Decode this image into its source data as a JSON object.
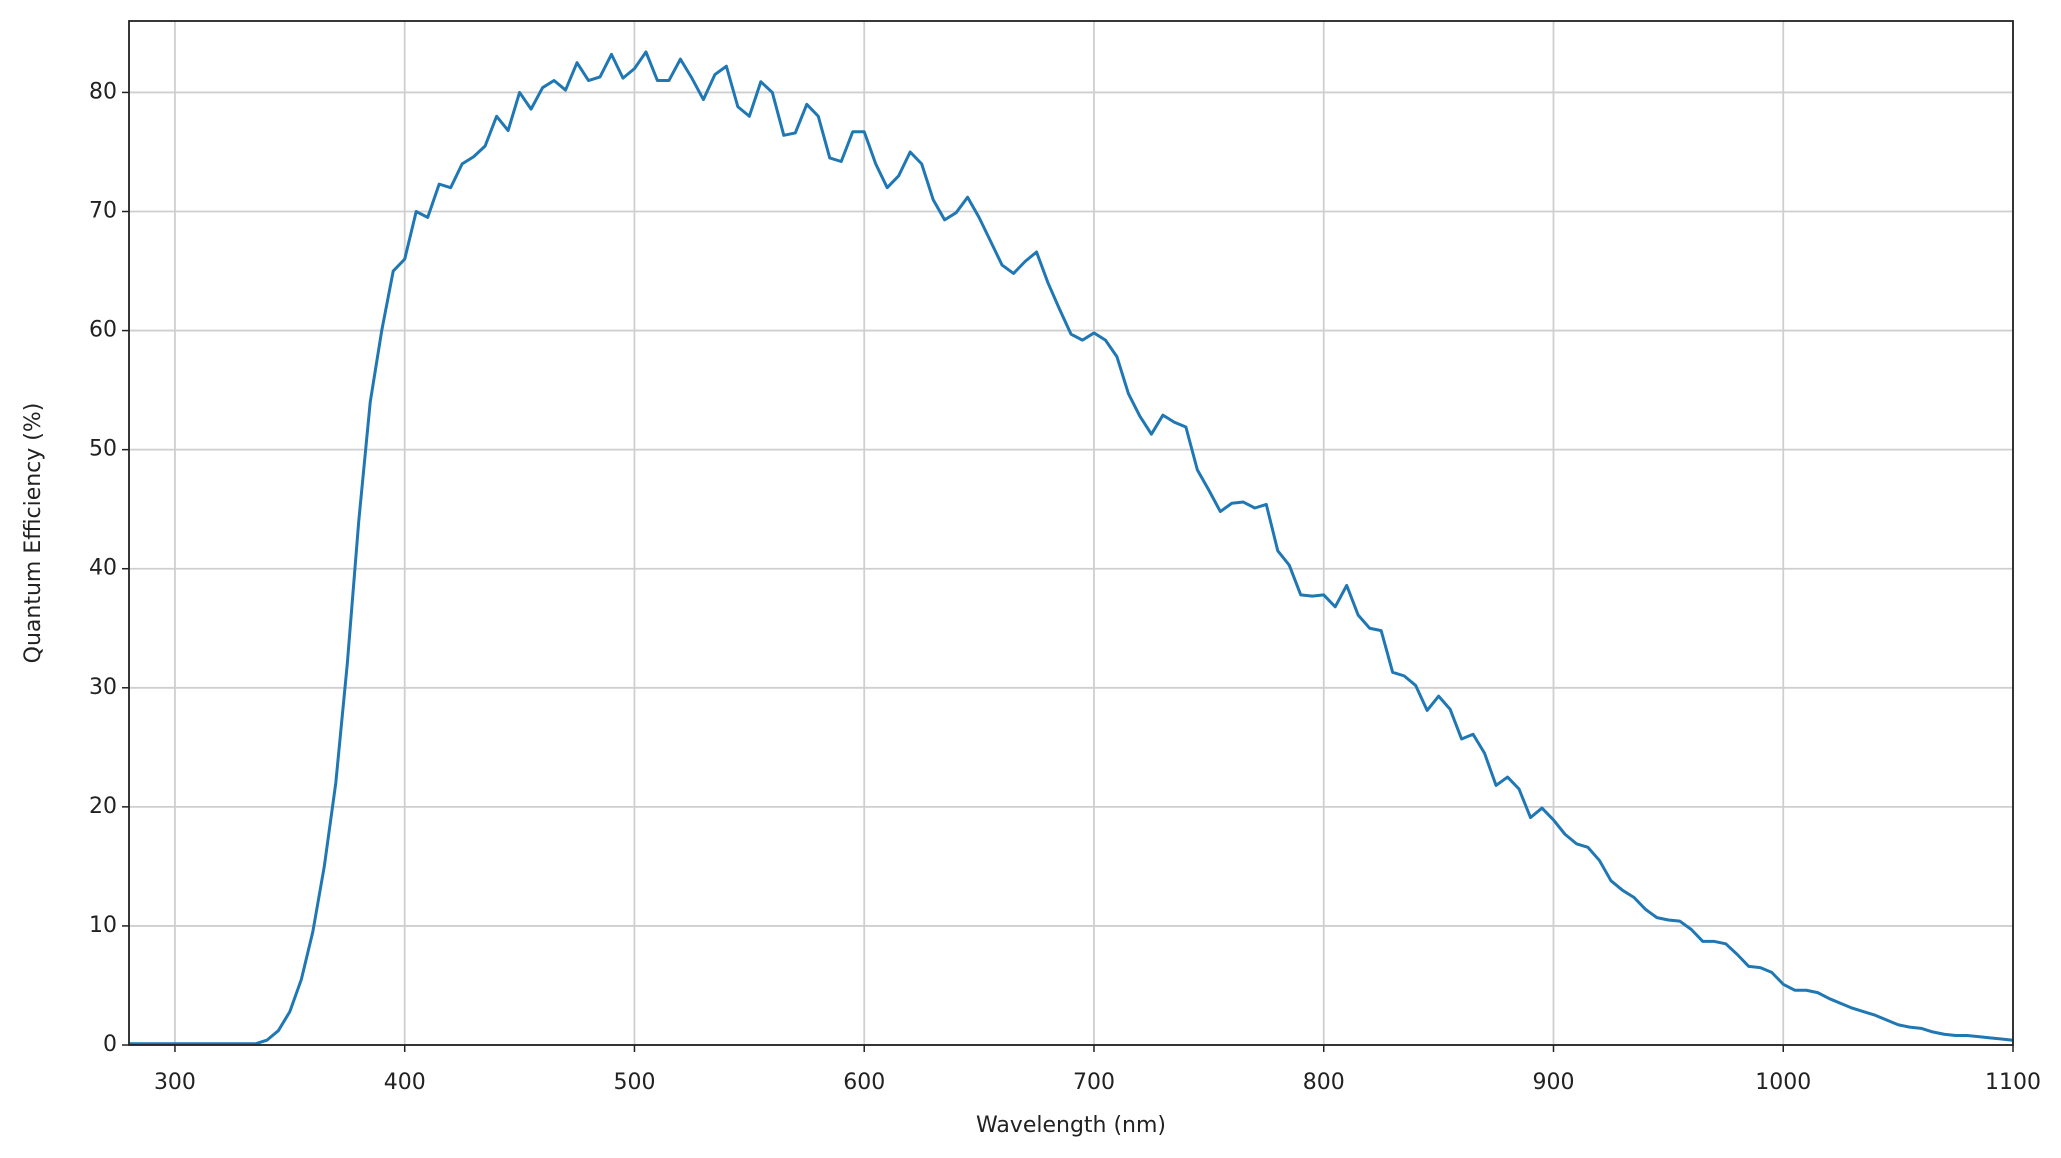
{
  "chart_data": {
    "type": "line",
    "x_label": "Wavelength (nm)",
    "y_label": "Quantum Efficiency (%)",
    "x": [
      280,
      285,
      290,
      295,
      300,
      305,
      310,
      315,
      320,
      325,
      330,
      335,
      340,
      345,
      350,
      355,
      360,
      365,
      370,
      375,
      380,
      385,
      390,
      395,
      400,
      405,
      410,
      415,
      420,
      425,
      430,
      435,
      440,
      445,
      450,
      455,
      460,
      465,
      470,
      475,
      480,
      485,
      490,
      495,
      500,
      505,
      510,
      515,
      520,
      525,
      530,
      535,
      540,
      545,
      550,
      555,
      560,
      565,
      570,
      575,
      580,
      585,
      590,
      595,
      600,
      605,
      610,
      615,
      620,
      625,
      630,
      635,
      640,
      645,
      650,
      655,
      660,
      665,
      670,
      675,
      680,
      685,
      690,
      695,
      700,
      705,
      710,
      715,
      720,
      725,
      730,
      735,
      740,
      745,
      750,
      755,
      760,
      765,
      770,
      775,
      780,
      785,
      790,
      795,
      800,
      805,
      810,
      815,
      820,
      825,
      830,
      835,
      840,
      845,
      850,
      855,
      860,
      865,
      870,
      875,
      880,
      885,
      890,
      895,
      900,
      905,
      910,
      915,
      920,
      925,
      930,
      935,
      940,
      945,
      950,
      955,
      960,
      965,
      970,
      975,
      980,
      985,
      990,
      995,
      1000,
      1005,
      1010,
      1015,
      1020,
      1025,
      1030,
      1035,
      1040,
      1045,
      1050,
      1055,
      1060,
      1065,
      1070,
      1075,
      1080,
      1085,
      1090,
      1095,
      1100
    ],
    "series": [
      {
        "color": "#1f77b4",
        "values": [
          0.1,
          0.1,
          0.1,
          0.1,
          0.1,
          0.1,
          0.1,
          0.1,
          0.1,
          0.1,
          0.1,
          0.1,
          0.4,
          1.2,
          2.8,
          5.5,
          9.5,
          15,
          22,
          32,
          44,
          54,
          60,
          65,
          66,
          70,
          69.5,
          72.3,
          72,
          74,
          74.6,
          75.5,
          78,
          76.8,
          80,
          78.6,
          80.4,
          81,
          80.2,
          82.5,
          81,
          81.3,
          83.2,
          81.2,
          82,
          83.4,
          81,
          81,
          82.8,
          81.2,
          79.4,
          81.5,
          82.2,
          78.8,
          78,
          80.9,
          80,
          76.4,
          76.6,
          79,
          78,
          74.5,
          74.2,
          76.7,
          76.7,
          74,
          72,
          73,
          75,
          74,
          71,
          69.3,
          69.9,
          71.2,
          69.5,
          67.5,
          65.5,
          64.8,
          65.8,
          66.6,
          64,
          61.8,
          59.7,
          59.2,
          59.8,
          59.2,
          57.8,
          54.7,
          52.8,
          51.3,
          52.9,
          52.3,
          51.9,
          48.3,
          46.6,
          44.8,
          45.5,
          45.6,
          45.1,
          45.4,
          41.5,
          40.3,
          37.8,
          37.7,
          37.8,
          36.8,
          38.6,
          36.1,
          35,
          34.8,
          31.3,
          31,
          30.2,
          28.1,
          29.3,
          28.2,
          25.7,
          26.1,
          24.5,
          21.8,
          22.5,
          21.5,
          19.1,
          19.9,
          18.9,
          17.7,
          16.9,
          16.6,
          15.5,
          13.8,
          13,
          12.4,
          11.4,
          10.7,
          10.5,
          10.4,
          9.7,
          8.7,
          8.7,
          8.5,
          7.6,
          6.6,
          6.5,
          6.1,
          5.1,
          4.6,
          4.6,
          4.4,
          3.9,
          3.5,
          3.1,
          2.8,
          2.5,
          2.1,
          1.7,
          1.5,
          1.4,
          1.1,
          0.9,
          0.8,
          0.8,
          0.7,
          0.6,
          0.5,
          0.4
        ]
      }
    ],
    "xlim": [
      280,
      1100
    ],
    "xticks": [
      300,
      400,
      500,
      600,
      700,
      800,
      900,
      1000,
      1100
    ],
    "ylim": [
      0,
      86
    ],
    "yticks": [
      0,
      10,
      20,
      30,
      40,
      50,
      60,
      70,
      80
    ],
    "grid": true
  }
}
